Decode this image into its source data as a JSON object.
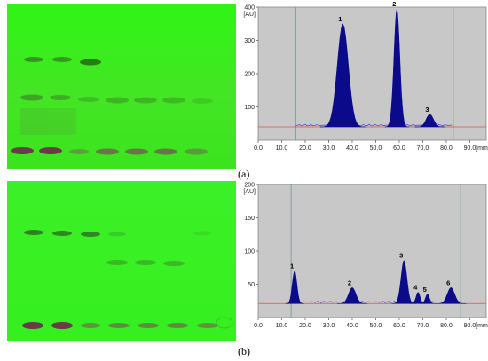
{
  "colors": {
    "plate_green": "#33ee1a",
    "chart_bg": "#c8c8c8",
    "peak_fill": "#0a0a8a",
    "baseline": "#3b3bd9",
    "threshold": "#e05050",
    "marker_line": "#6a9a9a"
  },
  "panels": [
    {
      "id": "a",
      "label": "(a)",
      "peak_labels": [
        "1",
        "2",
        "3"
      ]
    },
    {
      "id": "b",
      "label": "(b)",
      "peak_labels": [
        "1",
        "2",
        "3",
        "4",
        "5",
        "6"
      ]
    }
  ],
  "chart_data": [
    {
      "type": "line",
      "ylabel": "[AU]",
      "xunit": "[mm]",
      "xlim": [
        0,
        97
      ],
      "ylim": [
        0,
        400
      ],
      "x_ticks": [
        "0.0",
        "10.0",
        "20.0",
        "30.0",
        "40.0",
        "50.0",
        "60.0",
        "70.0",
        "80.0",
        "90.0"
      ],
      "y_ticks": [
        "100",
        "200",
        "300",
        "400"
      ],
      "y_tick_values": [
        100,
        200,
        300,
        400
      ],
      "baseline": 40,
      "start_marker": 16,
      "end_marker": 83,
      "peaks": [
        {
          "label": "1",
          "x": 36,
          "height": 350,
          "width": 6
        },
        {
          "label": "2",
          "x": 59,
          "height": 395,
          "width": 3.2
        },
        {
          "label": "3",
          "x": 73,
          "height": 78,
          "width": 4
        }
      ]
    },
    {
      "type": "line",
      "ylabel": "[AU]",
      "xunit": "[mm]",
      "xlim": [
        0,
        97
      ],
      "ylim": [
        0,
        200
      ],
      "x_ticks": [
        "0.0",
        "10.0",
        "20.0",
        "30.0",
        "40.0",
        "50.0",
        "60.0",
        "70.0",
        "80.0",
        "90.0"
      ],
      "y_ticks": [
        "50",
        "100",
        "150",
        "200"
      ],
      "y_tick_values": [
        50,
        100,
        150,
        200
      ],
      "baseline": 21,
      "start_marker": 14,
      "end_marker": 86,
      "peaks": [
        {
          "label": "1",
          "x": 15.5,
          "height": 70,
          "width": 2.5
        },
        {
          "label": "2",
          "x": 40,
          "height": 45,
          "width": 4
        },
        {
          "label": "3",
          "x": 62,
          "height": 86,
          "width": 3.2
        },
        {
          "label": "4",
          "x": 68,
          "height": 38,
          "width": 2.2
        },
        {
          "label": "5",
          "x": 72,
          "height": 35,
          "width": 2.2
        },
        {
          "label": "6",
          "x": 82,
          "height": 45,
          "width": 4
        }
      ]
    }
  ]
}
